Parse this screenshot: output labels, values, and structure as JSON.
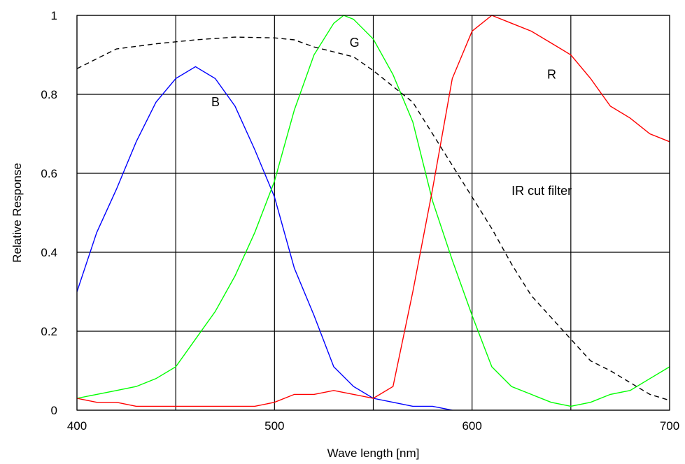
{
  "chart_data": {
    "type": "line",
    "xlabel": "Wave length [nm]",
    "ylabel": "Relative Response",
    "xlim": [
      400,
      700
    ],
    "ylim": [
      0,
      1
    ],
    "x_ticks": [
      "400",
      "500",
      "600",
      "700"
    ],
    "y_ticks": [
      "0",
      "0.2",
      "0.4",
      "0.6",
      "0.8",
      "1"
    ],
    "grid": true,
    "series": [
      {
        "name": "B",
        "color": "#0000ff",
        "dashed": false,
        "points": [
          [
            400,
            0.3
          ],
          [
            410,
            0.45
          ],
          [
            420,
            0.56
          ],
          [
            430,
            0.68
          ],
          [
            440,
            0.78
          ],
          [
            450,
            0.84
          ],
          [
            460,
            0.87
          ],
          [
            470,
            0.84
          ],
          [
            480,
            0.77
          ],
          [
            490,
            0.66
          ],
          [
            500,
            0.54
          ],
          [
            510,
            0.36
          ],
          [
            520,
            0.24
          ],
          [
            530,
            0.11
          ],
          [
            540,
            0.06
          ],
          [
            550,
            0.03
          ],
          [
            560,
            0.02
          ],
          [
            570,
            0.01
          ],
          [
            580,
            0.01
          ],
          [
            590,
            0.0
          ]
        ]
      },
      {
        "name": "G",
        "color": "#00ff00",
        "dashed": false,
        "points": [
          [
            400,
            0.03
          ],
          [
            410,
            0.04
          ],
          [
            420,
            0.05
          ],
          [
            430,
            0.06
          ],
          [
            440,
            0.08
          ],
          [
            450,
            0.11
          ],
          [
            460,
            0.18
          ],
          [
            470,
            0.25
          ],
          [
            480,
            0.34
          ],
          [
            490,
            0.45
          ],
          [
            500,
            0.58
          ],
          [
            510,
            0.76
          ],
          [
            520,
            0.9
          ],
          [
            530,
            0.98
          ],
          [
            535,
            1.0
          ],
          [
            540,
            0.99
          ],
          [
            550,
            0.94
          ],
          [
            560,
            0.85
          ],
          [
            570,
            0.73
          ],
          [
            580,
            0.53
          ],
          [
            590,
            0.38
          ],
          [
            600,
            0.24
          ],
          [
            610,
            0.11
          ],
          [
            620,
            0.06
          ],
          [
            630,
            0.04
          ],
          [
            640,
            0.02
          ],
          [
            650,
            0.01
          ],
          [
            660,
            0.02
          ],
          [
            670,
            0.04
          ],
          [
            680,
            0.05
          ],
          [
            690,
            0.08
          ],
          [
            700,
            0.11
          ]
        ]
      },
      {
        "name": "R",
        "color": "#ff0000",
        "dashed": false,
        "points": [
          [
            400,
            0.03
          ],
          [
            410,
            0.02
          ],
          [
            420,
            0.02
          ],
          [
            430,
            0.01
          ],
          [
            440,
            0.01
          ],
          [
            450,
            0.01
          ],
          [
            460,
            0.01
          ],
          [
            470,
            0.01
          ],
          [
            480,
            0.01
          ],
          [
            490,
            0.01
          ],
          [
            500,
            0.02
          ],
          [
            510,
            0.04
          ],
          [
            520,
            0.04
          ],
          [
            530,
            0.05
          ],
          [
            540,
            0.04
          ],
          [
            550,
            0.03
          ],
          [
            560,
            0.06
          ],
          [
            570,
            0.3
          ],
          [
            580,
            0.56
          ],
          [
            590,
            0.84
          ],
          [
            600,
            0.96
          ],
          [
            610,
            1.0
          ],
          [
            620,
            0.98
          ],
          [
            630,
            0.96
          ],
          [
            640,
            0.93
          ],
          [
            650,
            0.9
          ],
          [
            660,
            0.84
          ],
          [
            670,
            0.77
          ],
          [
            680,
            0.74
          ],
          [
            690,
            0.7
          ],
          [
            700,
            0.68
          ]
        ]
      },
      {
        "name": "IR cut filter",
        "color": "#000000",
        "dashed": true,
        "points": [
          [
            400,
            0.865
          ],
          [
            410,
            0.89
          ],
          [
            420,
            0.915
          ],
          [
            440,
            0.928
          ],
          [
            460,
            0.938
          ],
          [
            480,
            0.945
          ],
          [
            500,
            0.943
          ],
          [
            510,
            0.938
          ],
          [
            520,
            0.92
          ],
          [
            540,
            0.895
          ],
          [
            550,
            0.86
          ],
          [
            560,
            0.82
          ],
          [
            570,
            0.78
          ],
          [
            580,
            0.7
          ],
          [
            590,
            0.62
          ],
          [
            600,
            0.54
          ],
          [
            610,
            0.46
          ],
          [
            620,
            0.37
          ],
          [
            630,
            0.29
          ],
          [
            640,
            0.235
          ],
          [
            650,
            0.18
          ],
          [
            660,
            0.125
          ],
          [
            670,
            0.1
          ],
          [
            680,
            0.07
          ],
          [
            690,
            0.04
          ],
          [
            700,
            0.025
          ]
        ]
      }
    ],
    "annotations": [
      {
        "text": "B",
        "x": 468,
        "y": 0.77
      },
      {
        "text": "G",
        "x": 538,
        "y": 0.92
      },
      {
        "text": "R",
        "x": 638,
        "y": 0.84
      },
      {
        "text": "IR cut filter",
        "x": 620,
        "y": 0.545
      }
    ]
  }
}
